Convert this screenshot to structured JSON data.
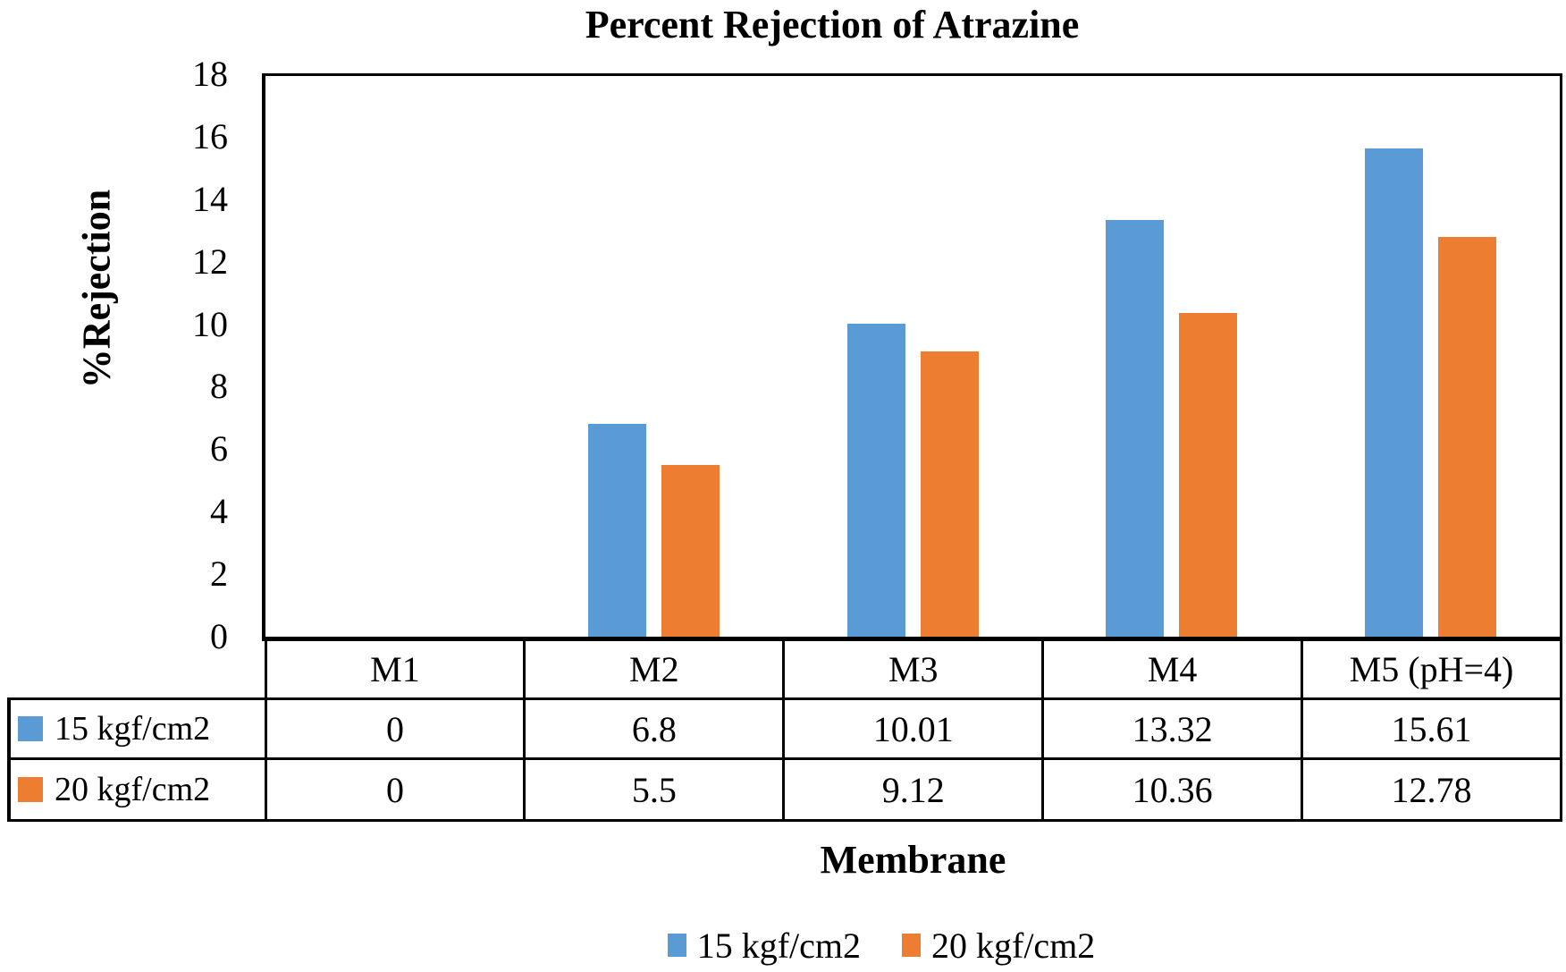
{
  "chart_data": {
    "type": "bar",
    "title": "Percent Rejection of Atrazine",
    "xlabel": "Membrane",
    "ylabel": "%Rejection",
    "categories": [
      "M1",
      "M2",
      "M3",
      "M4",
      "M5 (pH=4)"
    ],
    "series": [
      {
        "name": "15 kgf/cm2",
        "color": "#5B9BD5",
        "values": [
          0,
          6.8,
          10.01,
          13.32,
          15.61
        ]
      },
      {
        "name": "20 kgf/cm2",
        "color": "#ED7D31",
        "values": [
          0,
          5.5,
          9.12,
          10.36,
          12.78
        ]
      }
    ],
    "ylim": [
      0,
      18
    ],
    "ytick_step": 2,
    "ytick_labels": [
      "0",
      "2",
      "4",
      "6",
      "8",
      "10",
      "12",
      "14",
      "16",
      "18"
    ],
    "grid": false,
    "legend_position": "bottom",
    "legend_items": [
      "15 kgf/cm2",
      "20 kgf/cm2"
    ],
    "data_table_shown": true
  },
  "colors": {
    "series1": "#5B9BD5",
    "series2": "#ED7D31",
    "axis": "#000000",
    "background": "#FFFFFF"
  }
}
